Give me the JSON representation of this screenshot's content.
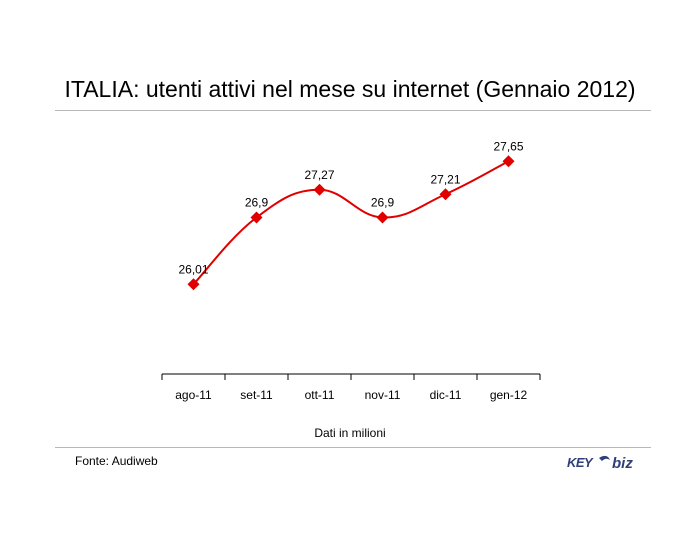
{
  "chart_data": {
    "type": "line",
    "title": "ITALIA: utenti attivi nel mese su internet (Gennaio 2012)",
    "categories": [
      "ago-11",
      "set-11",
      "ott-11",
      "nov-11",
      "dic-11",
      "gen-12"
    ],
    "values": [
      26.01,
      26.9,
      27.27,
      26.9,
      27.21,
      27.65
    ],
    "data_labels": [
      "26,01",
      "26,9",
      "27,27",
      "26,9",
      "27,21",
      "27,65"
    ],
    "ylim": [
      25.0,
      27.8
    ],
    "grid": false,
    "legend": "none",
    "line_color": "#e00000",
    "marker": "diamond",
    "xlabel": "",
    "ylabel": "",
    "note": "Dati in milioni"
  },
  "footer": {
    "source": "Fonte: Audiweb",
    "logo": {
      "text_left": "KEY",
      "text_right": "biz",
      "color_left": "#2f3f7a",
      "color_right": "#2f3f7a"
    }
  }
}
